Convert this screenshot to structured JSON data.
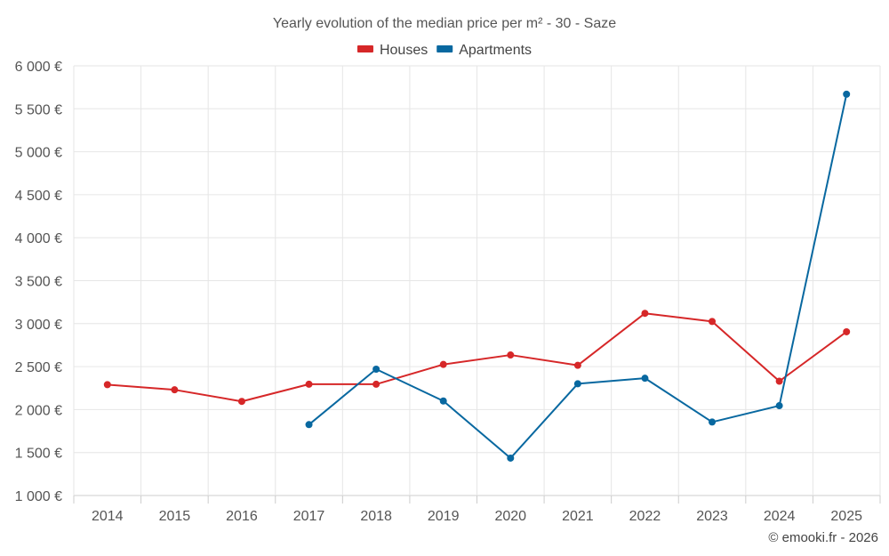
{
  "chart_data": {
    "type": "line",
    "title": "Yearly evolution of the median price per m² - 30 - Saze",
    "categories": [
      "2014",
      "2015",
      "2016",
      "2017",
      "2018",
      "2019",
      "2020",
      "2021",
      "2022",
      "2023",
      "2024",
      "2025"
    ],
    "ylim": [
      1000,
      6000
    ],
    "yticks": [
      1000,
      1500,
      2000,
      2500,
      3000,
      3500,
      4000,
      4500,
      5000,
      5500,
      6000
    ],
    "ytick_labels": [
      "1 000 €",
      "1 500 €",
      "2 000 €",
      "2 500 €",
      "3 000 €",
      "3 500 €",
      "4 000 €",
      "4 500 €",
      "5 000 €",
      "5 500 €",
      "6 000 €"
    ],
    "xlabel": "",
    "ylabel": "",
    "grid": true,
    "legend_position": "top-center",
    "series": [
      {
        "name": "Houses",
        "color": "#d62728",
        "values": [
          2290,
          2230,
          2095,
          2295,
          2295,
          2525,
          2635,
          2515,
          3120,
          3025,
          2330,
          2905
        ]
      },
      {
        "name": "Apartments",
        "color": "#0868a0",
        "values": [
          null,
          null,
          null,
          1825,
          2470,
          2100,
          1435,
          2300,
          2365,
          1855,
          2045,
          5670
        ]
      }
    ]
  },
  "credit": "© emooki.fr - 2026"
}
